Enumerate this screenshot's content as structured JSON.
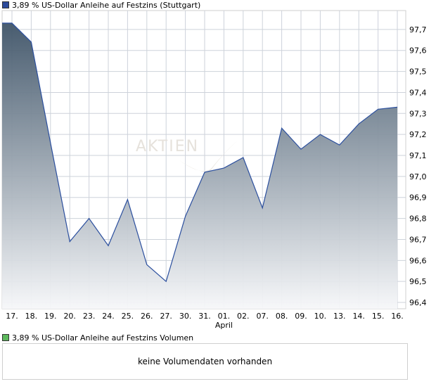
{
  "colors": {
    "line": "#2b4f9e",
    "fill_top": "#3f5468",
    "fill_bottom": "#f6f7f9",
    "grid": "#cdd2da",
    "price_swatch": "#2c4a9a",
    "volume_swatch": "#5cb85c"
  },
  "legend": {
    "price_label": "3,89 % US-Dollar Anleihe auf Festzins (Stuttgart)",
    "volume_label": "3,89 % US-Dollar Anleihe auf Festzins Volumen"
  },
  "watermark": {
    "text": "AKTIEN"
  },
  "volume_panel": {
    "message": "keine Volumendaten vorhanden"
  },
  "chart_data": {
    "type": "area",
    "categories": [
      "17.",
      "18.",
      "19.",
      "20.",
      "23.",
      "24.",
      "25.",
      "26.",
      "27.",
      "30.",
      "31.",
      "01.",
      "02.",
      "07.",
      "08.",
      "09.",
      "10.",
      "13.",
      "14.",
      "15.",
      "16."
    ],
    "month_label": "April",
    "month_label_index": 11,
    "series": [
      {
        "values": [
          97.73,
          97.64,
          97.16,
          96.69,
          96.8,
          96.67,
          96.89,
          96.58,
          96.5,
          96.81,
          97.02,
          97.04,
          97.09,
          96.85,
          97.23,
          97.13,
          97.2,
          97.15,
          97.25,
          97.32,
          97.33
        ]
      }
    ],
    "y_ticks": [
      "97,7",
      "97,6",
      "97,5",
      "97,4",
      "97,3",
      "97,2",
      "97,1",
      "97,0",
      "96,9",
      "96,8",
      "96,7",
      "96,6",
      "96,5",
      "96,4"
    ],
    "y_tick_values": [
      97.7,
      97.6,
      97.5,
      97.4,
      97.3,
      97.2,
      97.1,
      97.0,
      96.9,
      96.8,
      96.7,
      96.6,
      96.5,
      96.4
    ],
    "ylim": [
      96.37,
      97.79
    ],
    "grid": true
  }
}
